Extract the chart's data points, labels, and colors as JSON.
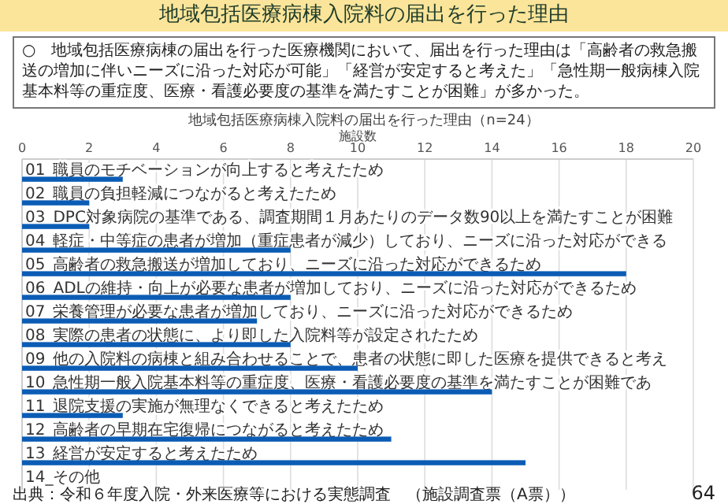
{
  "chart_data": {
    "type": "bar",
    "orientation": "horizontal",
    "title": "地域包括医療病棟入院料の届出を行った理由",
    "subtitle": "地域包括医療病棟入院料の届出を行った理由（n=24）",
    "xlabel": "施設数",
    "categories": [
      "01_職員のモチベーションが向上すると考えたため",
      "02_職員の負担軽減につながると考えたため",
      "03_DPC対象病院の基準である、調査期間１月あたりのデータ数90以上を満たすことが困難",
      "04_軽症・中等症の患者が増加（重症患者が減少）しており、ニーズに沿った対応ができる",
      "05_高齢者の救急搬送が増加しており、ニーズに沿った対応ができるため",
      "06_ADLの維持・向上が必要な患者が増加しており、ニーズに沿った対応ができるため",
      "07_栄養管理が必要な患者が増加しており、ニーズに沿った対応ができるため",
      "08_実際の患者の状態に、より即した入院料等が設定されたため",
      "09_他の入院料の病棟と組み合わせることで、患者の状態に即した医療を提供できると考え",
      "10_急性期一般入院基本料等の重症度、医療・看護必要度の基準を満たすことが困難であ",
      "11_退院支援の実施が無理なくできると考えたため",
      "12_高齢者の早期在宅復帰につながると考えたため",
      "13_経営が安定すると考えたため",
      "14_その他"
    ],
    "values": [
      3,
      2,
      2,
      8,
      18,
      8,
      7,
      8,
      10,
      14,
      3,
      11,
      15,
      0
    ],
    "color": "#0b5cb5",
    "xlim": [
      0,
      20
    ],
    "xticks": [
      0,
      2,
      4,
      6,
      8,
      10,
      12,
      14,
      16,
      18,
      20
    ],
    "grid": "x",
    "annotations": [
      "○　地域包括医療病棟の届出を行った医療機関において、届出を行った理由は「高齢者の救急搬送の増加に伴いニーズに沿った対応が可能」「経営が安定すると考えた」「急性期一般病棟入院基本料等の重症度、医療・看護必要度の基準を満たすことが困難」が多かった。",
      "出典：令和６年度入院・外来医療等における実態調査　（施設調査票（A票））",
      "64"
    ]
  }
}
